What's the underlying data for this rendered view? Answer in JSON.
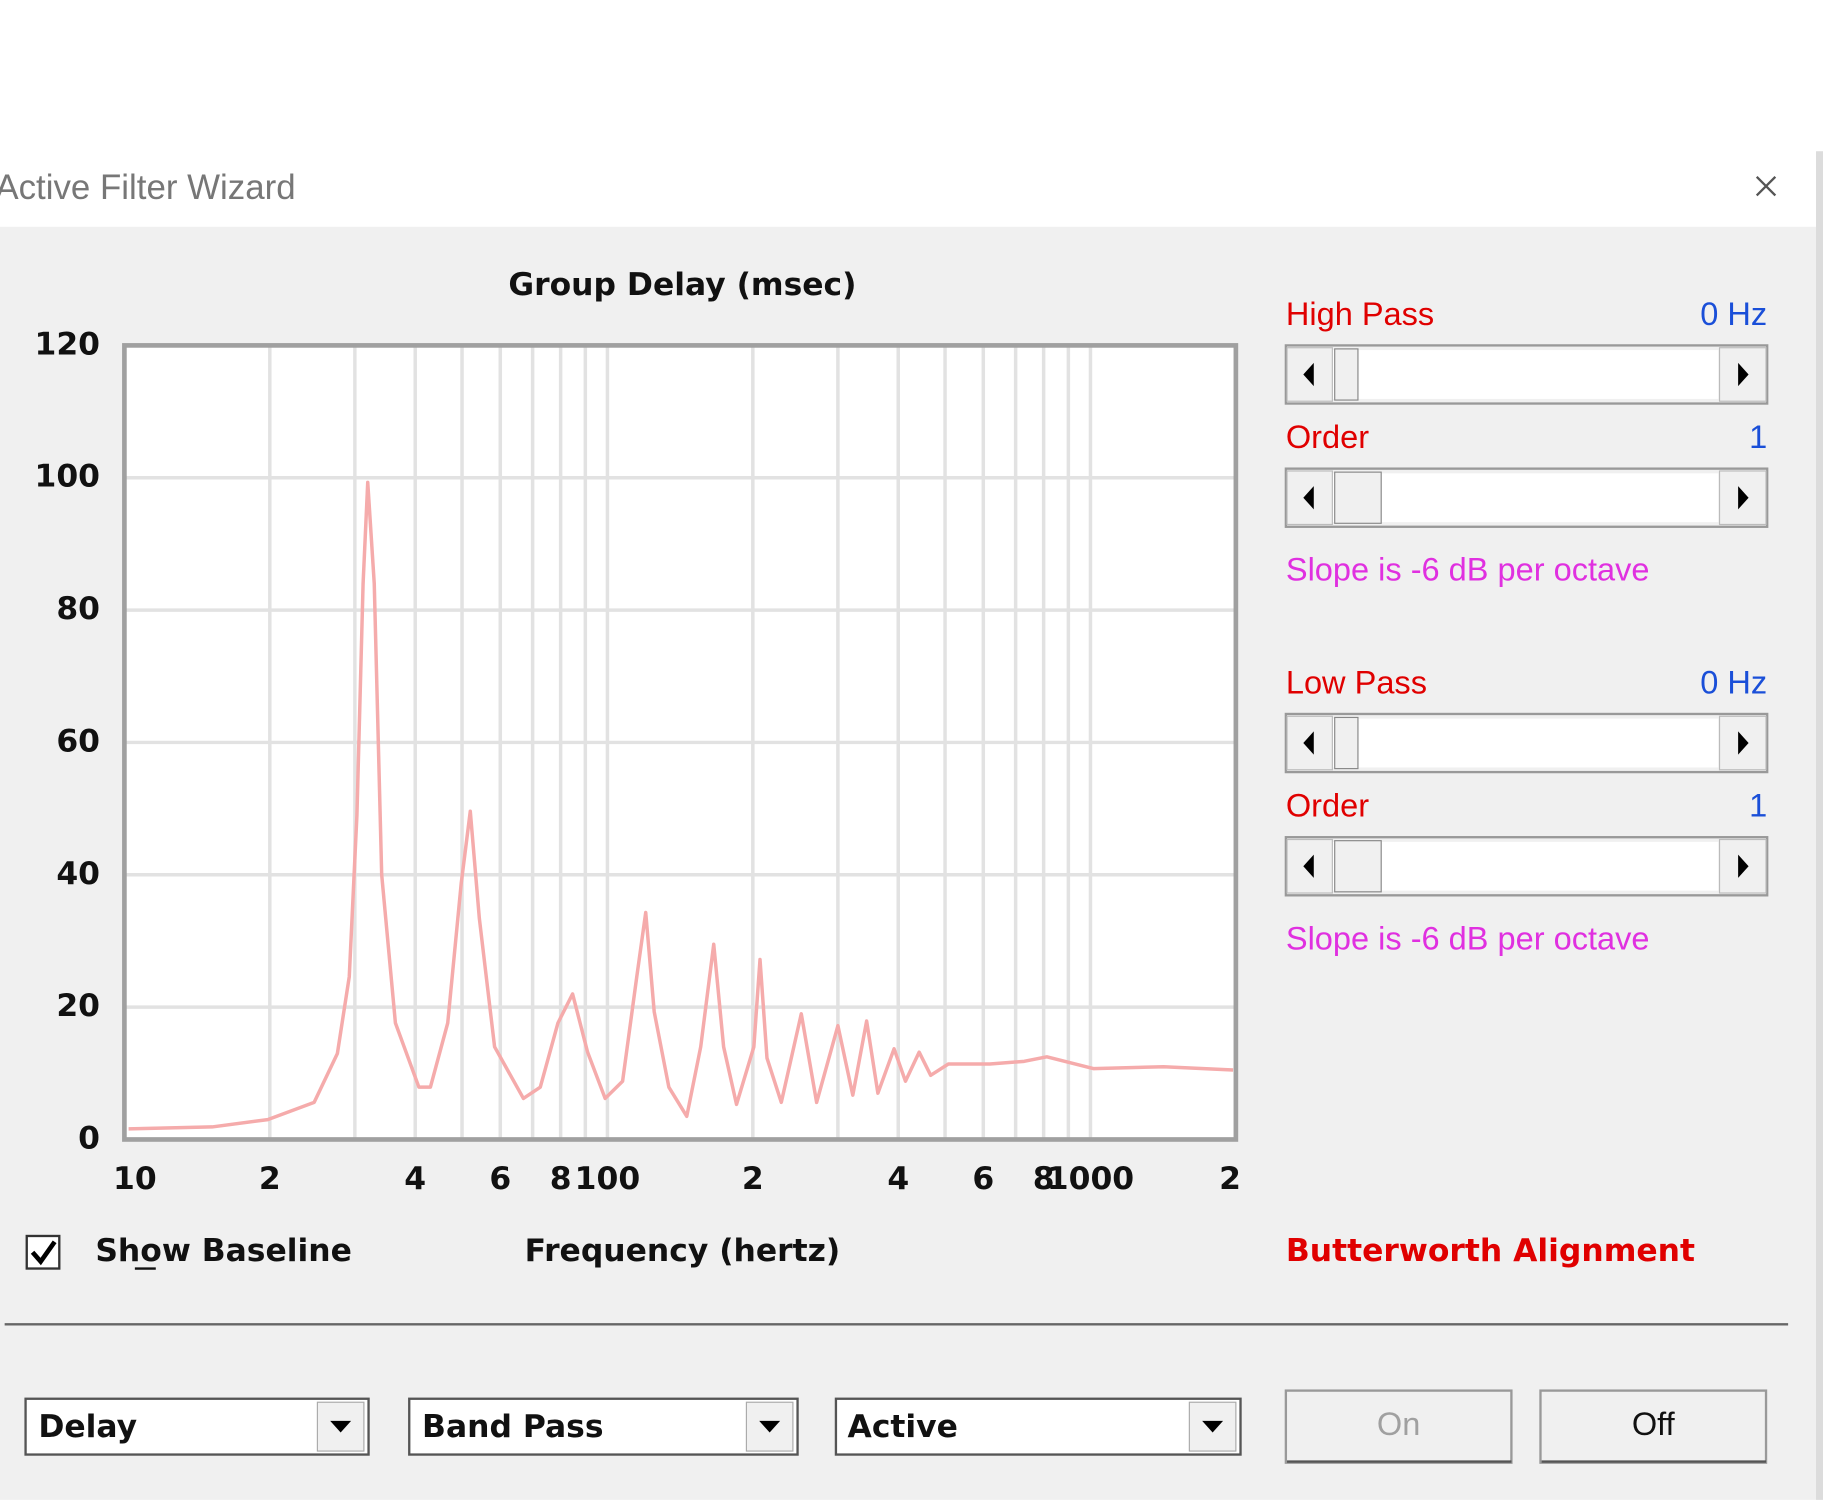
{
  "window": {
    "title": "Active Filter Wizard"
  },
  "chart_data": {
    "type": "line",
    "title": "Group Delay (msec)",
    "x_label": "Frequency (hertz)",
    "x": [
      10.2,
      15.2,
      19.8,
      24.7,
      27.6,
      29.2,
      30.3,
      31.2,
      31.9,
      32.9,
      34.1,
      36.4,
      40.7,
      43,
      46.7,
      49.8,
      52,
      54.3,
      58.4,
      67,
      72.6,
      79,
      84.7,
      91,
      98.9,
      107.5,
      115,
      120,
      125,
      134,
      146,
      156,
      166,
      174,
      185,
      201,
      207,
      214,
      229,
      252,
      271,
      300,
      322,
      344,
      363,
      392,
      414,
      442,
      467,
      508,
      619,
      729,
      812,
      1016,
      1418,
      1974
    ],
    "values": [
      1.6,
      1.9,
      3,
      5.6,
      13,
      24.6,
      49,
      84,
      99.3,
      84,
      40,
      17.6,
      7.9,
      7.9,
      17.6,
      38.7,
      49.6,
      33.4,
      14,
      6.2,
      7.9,
      17.6,
      22,
      13.2,
      6.2,
      8.8,
      24.6,
      34.3,
      19.3,
      7.9,
      3.5,
      14,
      29.5,
      14,
      5.3,
      14,
      27.2,
      12.3,
      5.6,
      19,
      5.6,
      17.2,
      6.7,
      17.9,
      7,
      13.7,
      8.8,
      13.2,
      9.7,
      11.4,
      11.4,
      11.8,
      12.5,
      10.7,
      11,
      10.5
    ],
    "color": "#f5abab",
    "xlog": true,
    "xlim": [
      10,
      2000
    ],
    "ylim": [
      0,
      120
    ],
    "xticks": [
      10,
      {
        "value": 20,
        "label": "2"
      },
      {
        "value": 40,
        "label": "4"
      },
      {
        "value": 60,
        "label": "6"
      },
      {
        "value": 80,
        "label": "8"
      },
      100,
      {
        "value": 200,
        "label": "2"
      },
      {
        "value": 400,
        "label": "4"
      },
      {
        "value": 600,
        "label": "6"
      },
      {
        "value": 800,
        "label": "8"
      },
      1000,
      {
        "value": 2000,
        "label": "2"
      }
    ],
    "minor_xticks": [
      30,
      50,
      70,
      90,
      300,
      500,
      700,
      900
    ],
    "yticks": [
      0,
      20,
      40,
      60,
      80,
      100,
      120
    ],
    "grid": true
  },
  "controls": {
    "show_baseline": {
      "label": "Show Baseline",
      "checked": true
    },
    "high_pass": {
      "label": "High Pass",
      "value": "0 Hz",
      "order_label": "Order",
      "order": 1,
      "slope": "Slope is -6 dB per octave"
    },
    "low_pass": {
      "label": "Low Pass",
      "value": "0 Hz",
      "order_label": "Order",
      "order": 1,
      "slope": "Slope is -6 dB per octave"
    },
    "alignment": "Butterworth Alignment",
    "dropdowns": [
      "Delay",
      "Band Pass",
      "Active"
    ],
    "buttons": [
      "On",
      "Off"
    ]
  }
}
